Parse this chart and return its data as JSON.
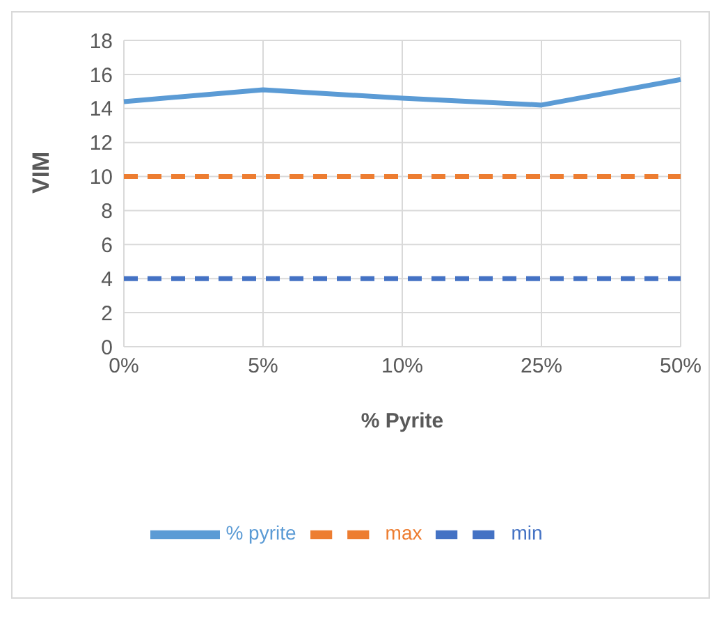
{
  "chart_data": {
    "type": "line",
    "xlabel": "% Pyrite",
    "ylabel": "VIM",
    "categories": [
      "0%",
      "5%",
      "10%",
      "25%",
      "50%"
    ],
    "series": [
      {
        "name": "min",
        "color": "#4472c4",
        "values": [
          4,
          4,
          4,
          4,
          4
        ],
        "line_style": "dashed"
      },
      {
        "name": "max",
        "color": "#ed7d31",
        "values": [
          10,
          10,
          10,
          10,
          10
        ],
        "line_style": "dashed"
      },
      {
        "name": "% pyrite",
        "color": "#5b9bd5",
        "values": [
          14.4,
          15.1,
          14.6,
          14.2,
          15.7
        ],
        "line_style": "solid"
      }
    ],
    "ylim": [
      0,
      18
    ],
    "yticks": [
      0,
      2,
      4,
      6,
      8,
      10,
      12,
      14,
      16,
      18
    ],
    "grid": true,
    "legend": "bottom",
    "marker": "none"
  }
}
